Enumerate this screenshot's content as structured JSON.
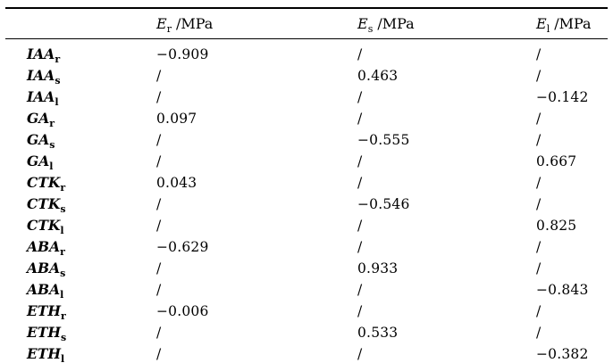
{
  "table": {
    "headers": [
      {
        "symbol": "E",
        "sub": "r",
        "unit": "/MPa"
      },
      {
        "symbol": "E",
        "sub": "s",
        "unit": "/MPa"
      },
      {
        "symbol": "E",
        "sub": "l",
        "unit": "/MPa"
      }
    ],
    "rows": [
      {
        "name": "IAA",
        "sub": "r",
        "values": [
          "−0.909",
          "/",
          "/"
        ]
      },
      {
        "name": "IAA",
        "sub": "s",
        "values": [
          "/",
          "0.463",
          "/"
        ]
      },
      {
        "name": "IAA",
        "sub": "l",
        "values": [
          "/",
          "/",
          "−0.142"
        ]
      },
      {
        "name": "GA",
        "sub": "r",
        "values": [
          "0.097",
          "/",
          "/"
        ]
      },
      {
        "name": "GA",
        "sub": "s",
        "values": [
          "/",
          "−0.555",
          "/"
        ]
      },
      {
        "name": "GA",
        "sub": "l",
        "values": [
          "/",
          "/",
          "0.667"
        ]
      },
      {
        "name": "CTK",
        "sub": "r",
        "values": [
          "0.043",
          "/",
          "/"
        ]
      },
      {
        "name": "CTK",
        "sub": "s",
        "values": [
          "/",
          "−0.546",
          "/"
        ]
      },
      {
        "name": "CTK",
        "sub": "l",
        "values": [
          "/",
          "/",
          "0.825"
        ]
      },
      {
        "name": "ABA",
        "sub": "r",
        "values": [
          "−0.629",
          "/",
          "/"
        ]
      },
      {
        "name": "ABA",
        "sub": "s",
        "values": [
          "/",
          "0.933",
          "/"
        ]
      },
      {
        "name": "ABA",
        "sub": "l",
        "values": [
          "/",
          "/",
          "−0.843"
        ]
      },
      {
        "name": "ETH",
        "sub": "r",
        "values": [
          "−0.006",
          "/",
          "/"
        ]
      },
      {
        "name": "ETH",
        "sub": "s",
        "values": [
          "/",
          "0.533",
          "/"
        ]
      },
      {
        "name": "ETH",
        "sub": "l",
        "values": [
          "/",
          "/",
          "−0.382"
        ]
      }
    ],
    "colors": {
      "background": "#ffffff",
      "text": "#000000",
      "rule": "#000000"
    }
  }
}
